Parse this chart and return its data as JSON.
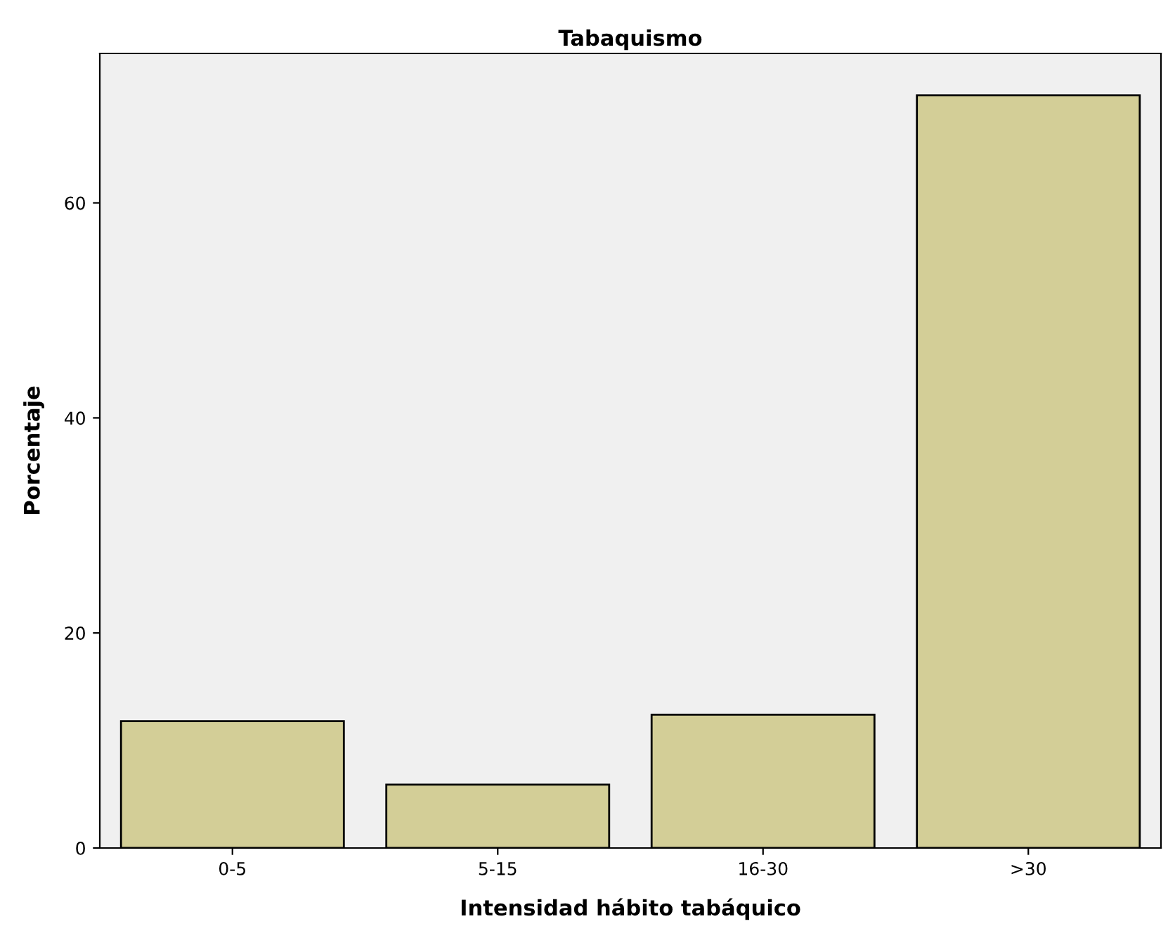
{
  "chart_data": {
    "type": "bar",
    "title": "Tabaquismo",
    "xlabel": "Intensidad hábito tabáquico",
    "ylabel": "Porcentaje",
    "categories": [
      "0-5",
      "5-15",
      "16-30",
      ">30"
    ],
    "values": [
      11.8,
      5.9,
      12.4,
      70.0
    ],
    "color": "#d3ce97",
    "ylim": [
      0,
      73.9
    ],
    "yticks": [
      0,
      20,
      40,
      60
    ],
    "grid": false
  }
}
